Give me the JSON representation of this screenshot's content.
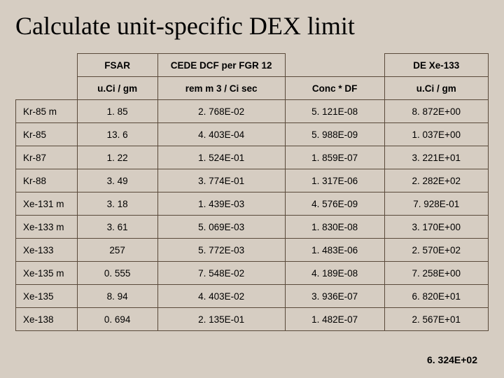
{
  "title": "Calculate unit-specific DEX limit",
  "table": {
    "header_row1": {
      "c0": "",
      "c1": "FSAR",
      "c2": "CEDE DCF per FGR 12",
      "c3": "",
      "c4": "DE Xe-133"
    },
    "header_row2": {
      "c0": "",
      "c1": "u.Ci / gm",
      "c2": "rem m 3  / Ci sec",
      "c3": "Conc * DF",
      "c4": "u.Ci / gm"
    },
    "rows": [
      {
        "label": "Kr-85 m",
        "fsar": "1. 85",
        "cede": "2. 768E-02",
        "conc": "5. 121E-08",
        "de": "8. 872E+00"
      },
      {
        "label": "Kr-85",
        "fsar": "13. 6",
        "cede": "4. 403E-04",
        "conc": "5. 988E-09",
        "de": "1. 037E+00"
      },
      {
        "label": "Kr-87",
        "fsar": "1. 22",
        "cede": "1. 524E-01",
        "conc": "1. 859E-07",
        "de": "3. 221E+01"
      },
      {
        "label": "Kr-88",
        "fsar": "3. 49",
        "cede": "3. 774E-01",
        "conc": "1. 317E-06",
        "de": "2. 282E+02"
      },
      {
        "label": "Xe-131 m",
        "fsar": "3. 18",
        "cede": "1. 439E-03",
        "conc": "4. 576E-09",
        "de": "7. 928E-01"
      },
      {
        "label": "Xe-133 m",
        "fsar": "3. 61",
        "cede": "5. 069E-03",
        "conc": "1. 830E-08",
        "de": "3. 170E+00"
      },
      {
        "label": "Xe-133",
        "fsar": "257",
        "cede": "5. 772E-03",
        "conc": "1. 483E-06",
        "de": "2. 570E+02"
      },
      {
        "label": "Xe-135 m",
        "fsar": "0. 555",
        "cede": "7. 548E-02",
        "conc": "4. 189E-08",
        "de": "7. 258E+00"
      },
      {
        "label": "Xe-135",
        "fsar": "8. 94",
        "cede": "4. 403E-02",
        "conc": "3. 936E-07",
        "de": "6. 820E+01"
      },
      {
        "label": "Xe-138",
        "fsar": "0. 694",
        "cede": "2. 135E-01",
        "conc": "1. 482E-07",
        "de": "2. 567E+01"
      }
    ]
  },
  "total": "6. 324E+02",
  "colors": {
    "background": "#d6cdc2",
    "border": "#5a4a3a",
    "text": "#000000"
  }
}
